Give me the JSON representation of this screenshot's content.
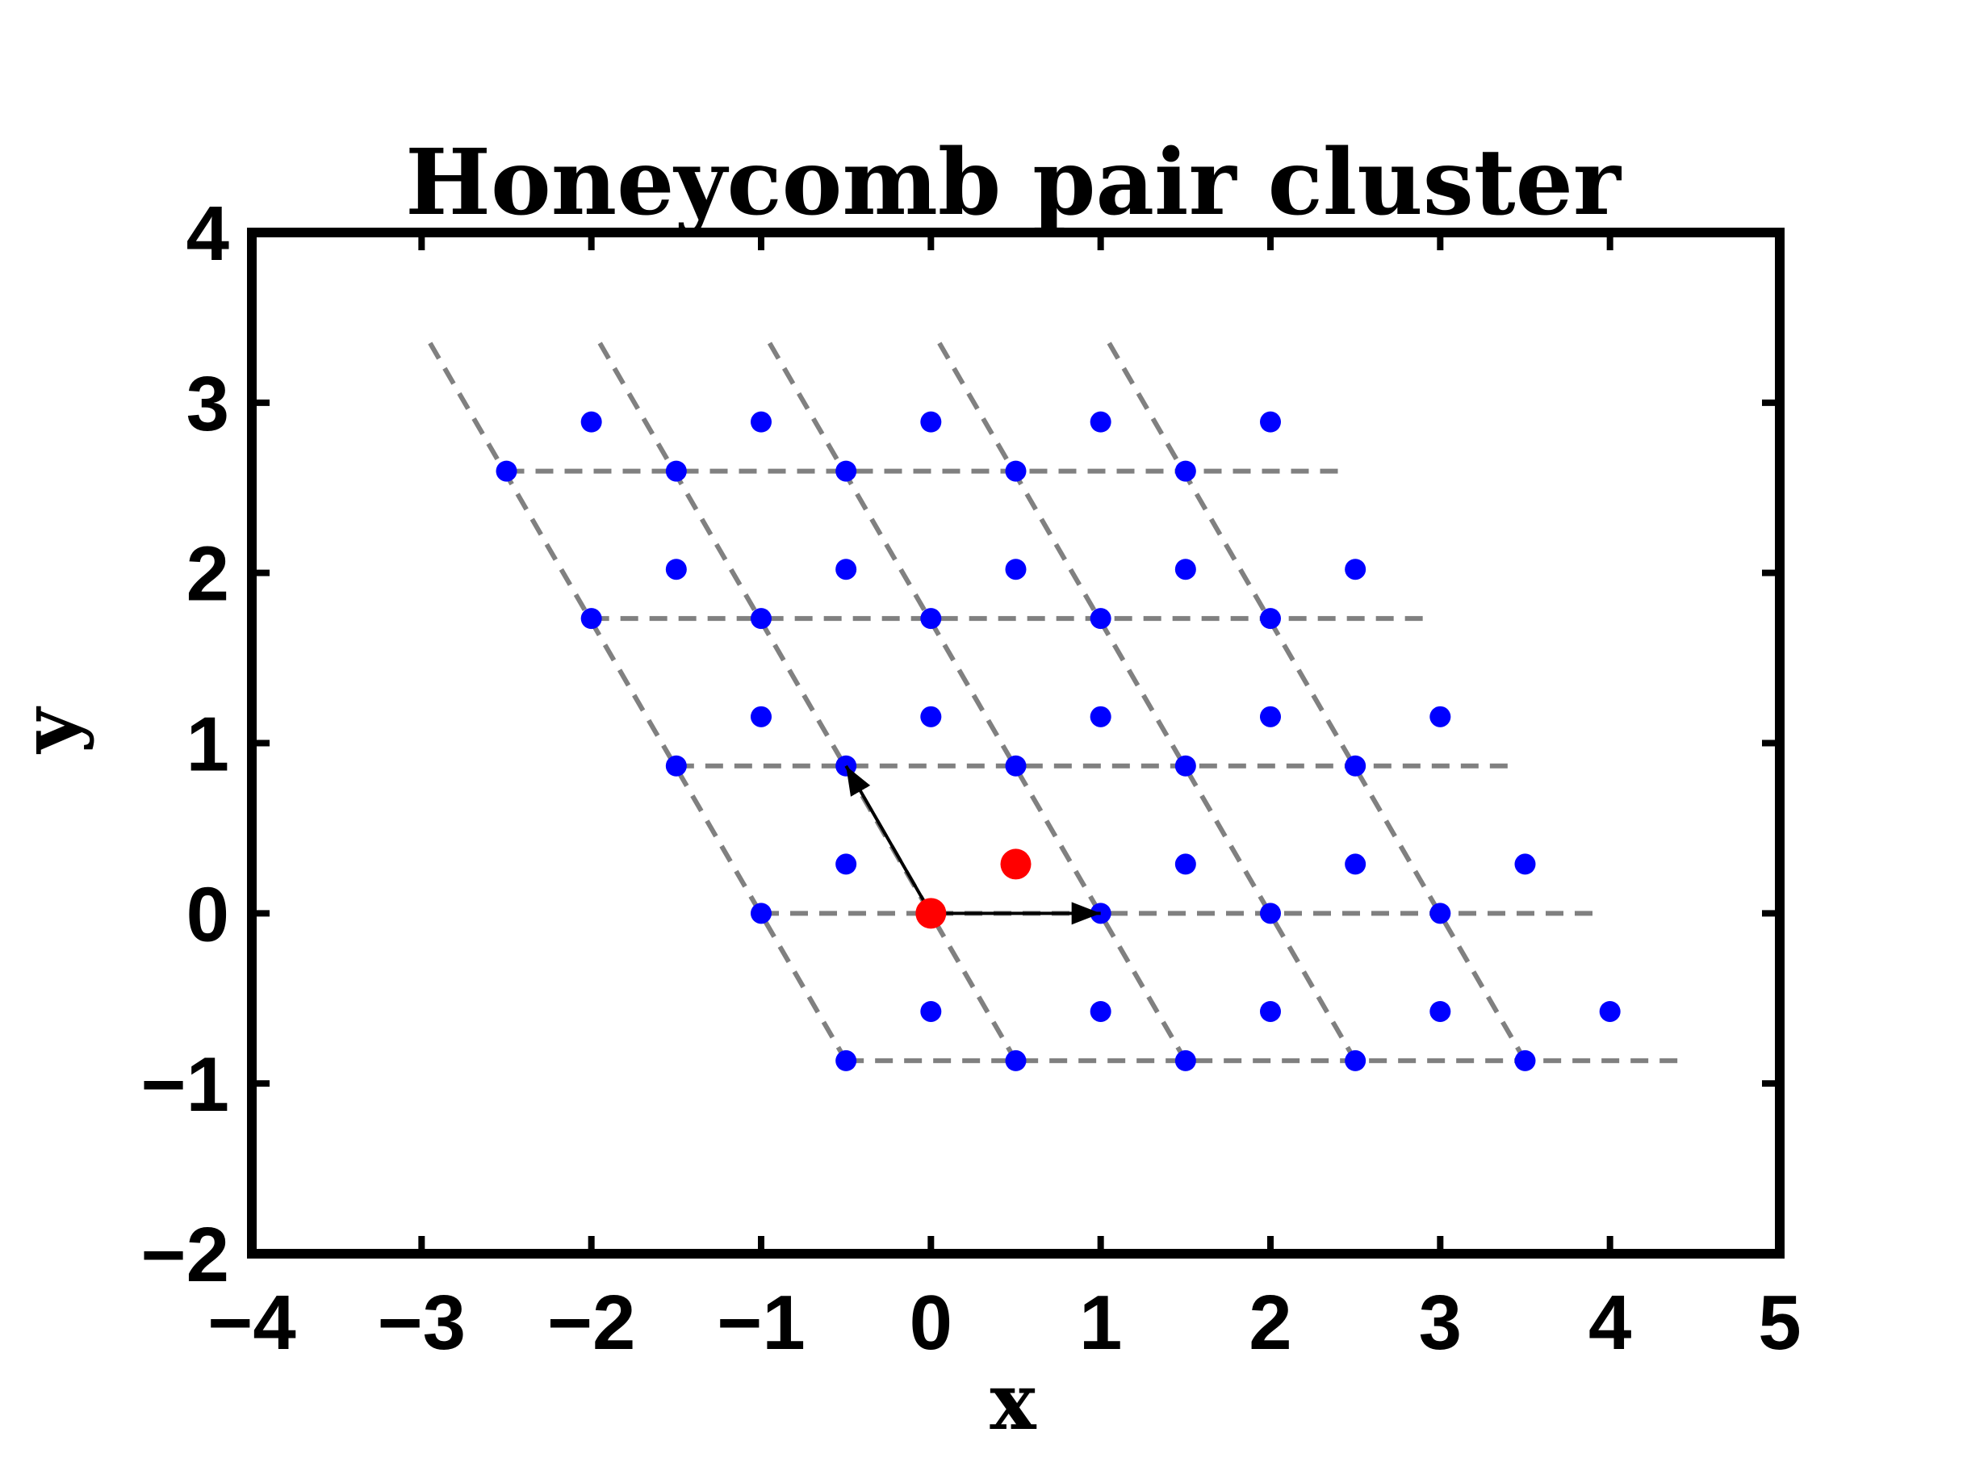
{
  "chart_data": {
    "type": "scatter",
    "title": "Honeycomb pair cluster",
    "xlabel": "x",
    "ylabel": "y",
    "xlim": [
      -4,
      5
    ],
    "ylim": [
      -2,
      4
    ],
    "xticks": [
      -4,
      -3,
      -2,
      -1,
      0,
      1,
      2,
      3,
      4,
      5
    ],
    "yticks": [
      -2,
      -1,
      0,
      1,
      2,
      3,
      4
    ],
    "xtick_labels": [
      "−4",
      "−3",
      "−2",
      "−1",
      "0",
      "1",
      "2",
      "3",
      "4",
      "5"
    ],
    "ytick_labels": [
      "−2",
      "−1",
      "0",
      "1",
      "2",
      "3",
      "4"
    ],
    "grid": false,
    "colors": {
      "lattice_points": "#0000ff",
      "highlighted_points": "#ff0000",
      "lattice_lines": "#808080",
      "vectors": "#000000"
    },
    "lattice_points": [
      [
        -2.5,
        2.598
      ],
      [
        -1.5,
        2.598
      ],
      [
        -0.5,
        2.598
      ],
      [
        0.5,
        2.598
      ],
      [
        1.5,
        2.598
      ],
      [
        -2.0,
        1.732
      ],
      [
        -1.0,
        1.732
      ],
      [
        0.0,
        1.732
      ],
      [
        1.0,
        1.732
      ],
      [
        2.0,
        1.732
      ],
      [
        -1.5,
        0.866
      ],
      [
        -0.5,
        0.866
      ],
      [
        0.5,
        0.866
      ],
      [
        1.5,
        0.866
      ],
      [
        2.5,
        0.866
      ],
      [
        -1.0,
        0.0
      ],
      [
        0.0,
        0.0
      ],
      [
        1.0,
        0.0
      ],
      [
        2.0,
        0.0
      ],
      [
        3.0,
        0.0
      ],
      [
        -0.5,
        -0.866
      ],
      [
        0.5,
        -0.866
      ],
      [
        1.5,
        -0.866
      ],
      [
        2.5,
        -0.866
      ],
      [
        3.5,
        -0.866
      ],
      [
        -2.0,
        2.887
      ],
      [
        -1.0,
        2.887
      ],
      [
        0.0,
        2.887
      ],
      [
        1.0,
        2.887
      ],
      [
        2.0,
        2.887
      ],
      [
        -1.5,
        2.021
      ],
      [
        -0.5,
        2.021
      ],
      [
        0.5,
        2.021
      ],
      [
        1.5,
        2.021
      ],
      [
        2.5,
        2.021
      ],
      [
        -1.0,
        1.155
      ],
      [
        0.0,
        1.155
      ],
      [
        1.0,
        1.155
      ],
      [
        2.0,
        1.155
      ],
      [
        3.0,
        1.155
      ],
      [
        -0.5,
        0.289
      ],
      [
        0.5,
        0.289
      ],
      [
        1.5,
        0.289
      ],
      [
        2.5,
        0.289
      ],
      [
        3.5,
        0.289
      ],
      [
        0.0,
        -0.577
      ],
      [
        1.0,
        -0.577
      ],
      [
        2.0,
        -0.577
      ],
      [
        3.0,
        -0.577
      ],
      [
        4.0,
        -0.577
      ]
    ],
    "highlighted_points": [
      [
        0.0,
        0.0
      ],
      [
        0.5,
        0.289
      ]
    ],
    "horizontal_lines": [
      {
        "y": 2.598,
        "x": [
          -2.5,
          2.4
        ]
      },
      {
        "y": 1.732,
        "x": [
          -2.0,
          2.9
        ]
      },
      {
        "y": 0.866,
        "x": [
          -1.5,
          3.4
        ]
      },
      {
        "y": 0.0,
        "x": [
          -1.0,
          3.9
        ]
      },
      {
        "y": -0.866,
        "x": [
          -0.5,
          4.4
        ]
      }
    ],
    "slanted_lines": [
      {
        "start": [
          -2.95,
          3.35
        ],
        "end": [
          -0.5,
          -0.866
        ]
      },
      {
        "start": [
          -1.95,
          3.35
        ],
        "end": [
          0.5,
          -0.866
        ]
      },
      {
        "start": [
          -0.95,
          3.35
        ],
        "end": [
          1.5,
          -0.866
        ]
      },
      {
        "start": [
          0.05,
          3.35
        ],
        "end": [
          2.5,
          -0.866
        ]
      },
      {
        "start": [
          1.05,
          3.35
        ],
        "end": [
          3.5,
          -0.866
        ]
      }
    ],
    "vectors": [
      {
        "from": [
          0,
          0
        ],
        "to": [
          1.0,
          0.0
        ]
      },
      {
        "from": [
          0,
          0
        ],
        "to": [
          -0.5,
          0.866
        ]
      }
    ]
  }
}
